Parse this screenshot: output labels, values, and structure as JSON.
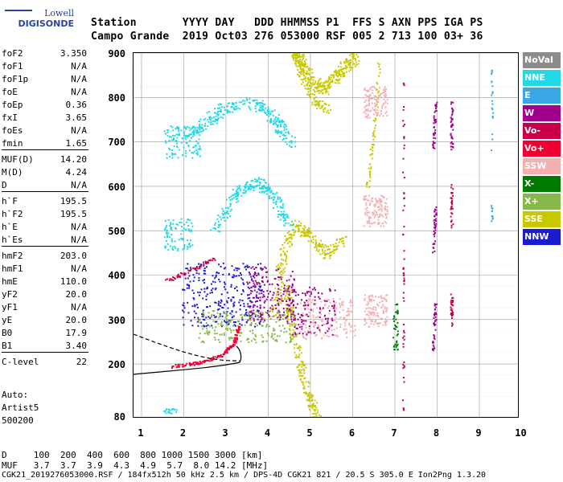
{
  "logo": {
    "top": "Lowell",
    "main": "DIGISONDE"
  },
  "header": {
    "row1": "Station       YYYY DAY   DDD HHMMSS P1  FFS S AXN PPS IGA PS",
    "row2": "Campo Grande  2019 Oct03 276 053000 RSF 005 2 713 100 03+ 36"
  },
  "params": [
    {
      "k": "foF2",
      "v": "3.350"
    },
    {
      "k": "foF1",
      "v": "N/A"
    },
    {
      "k": "foF1p",
      "v": "N/A"
    },
    {
      "k": "foE",
      "v": "N/A"
    },
    {
      "k": "foEp",
      "v": "0.36"
    },
    {
      "k": "fxI",
      "v": "3.65"
    },
    {
      "k": "foEs",
      "v": "N/A"
    },
    {
      "k": "fmin",
      "v": "1.65"
    },
    {
      "k": "MUF(D)",
      "v": "14.20"
    },
    {
      "k": "M(D)",
      "v": "4.24"
    },
    {
      "k": "D",
      "v": "N/A"
    },
    {
      "k": "h`F",
      "v": "195.5"
    },
    {
      "k": "h`F2",
      "v": "195.5"
    },
    {
      "k": "h`E",
      "v": "N/A"
    },
    {
      "k": "h`Es",
      "v": "N/A"
    },
    {
      "k": "hmF2",
      "v": "203.0"
    },
    {
      "k": "hmF1",
      "v": "N/A"
    },
    {
      "k": "hmE",
      "v": "110.0"
    },
    {
      "k": "yF2",
      "v": "20.0"
    },
    {
      "k": "yF1",
      "v": "N/A"
    },
    {
      "k": "yE",
      "v": "20.0"
    },
    {
      "k": "B0",
      "v": "17.9"
    },
    {
      "k": "B1",
      "v": "3.40"
    },
    {
      "k": "C-level",
      "v": "22"
    }
  ],
  "auto": {
    "line1": "Auto:",
    "line2": "Artist5",
    "line3": "500200"
  },
  "axes": {
    "x_ticks": [
      "1",
      "2",
      "3",
      "4",
      "5",
      "6",
      "7",
      "8",
      "9",
      "10"
    ],
    "y_ticks": [
      "900",
      "800",
      "700",
      "600",
      "500",
      "400",
      "300",
      "200",
      "80"
    ]
  },
  "legend": [
    {
      "label": "NoVal",
      "color": "#8c8c8c"
    },
    {
      "label": "NNE",
      "color": "#22d8e6"
    },
    {
      "label": "E",
      "color": "#3aa6e6"
    },
    {
      "label": "W",
      "color": "#a0008c"
    },
    {
      "label": "Vo-",
      "color": "#c8004a"
    },
    {
      "label": "Vo+",
      "color": "#f00030"
    },
    {
      "label": "SSW",
      "color": "#f4b0b0"
    },
    {
      "label": "X-",
      "color": "#007a00"
    },
    {
      "label": "X+",
      "color": "#86b84a"
    },
    {
      "label": "SSE",
      "color": "#c8c800"
    },
    {
      "label": "NNW",
      "color": "#1a1ad0"
    }
  ],
  "footer": {
    "line1": "D     100  200  400  600  800 1000 1500 3000 [km]",
    "line2": "MUF   3.7  3.7  3.9  4.3  4.9  5.7  8.0 14.2 [MHz]",
    "line3": "CGK21_2019276053000.RSF / 184fx512h 50 kHz 2.5 km / DPS-4D CGK21 821 / 20.5 S 305.0 E Ion2Png 1.3.20"
  }
}
